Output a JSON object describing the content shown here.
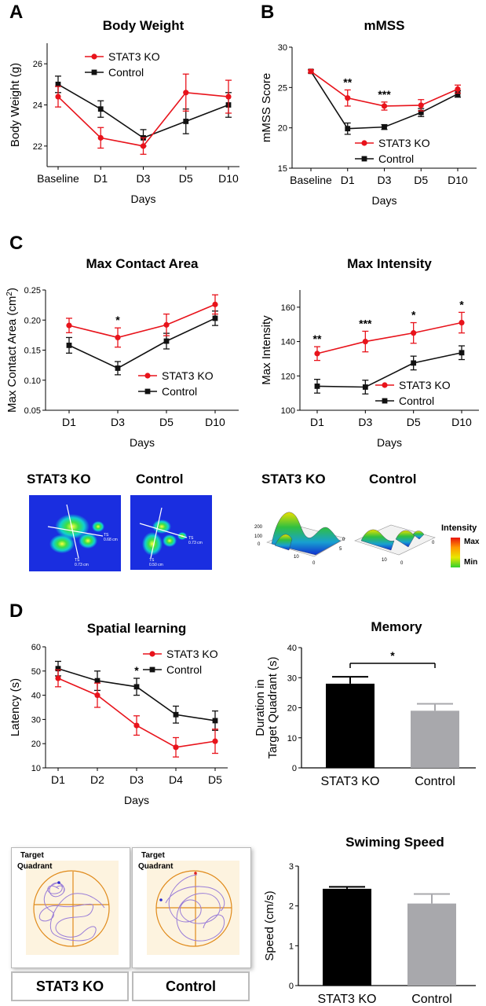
{
  "colors": {
    "ko": "#e8131b",
    "control": "#111111",
    "control_bar": "#a8a8ac",
    "axis": "#000000"
  },
  "panels": {
    "A": {
      "letter": "A",
      "chart_data": {
        "type": "line",
        "title": "Body Weight",
        "xlabel": "Days",
        "ylabel": "Body Weight (g)",
        "categories": [
          "Baseline",
          "D1",
          "D3",
          "D5",
          "D10"
        ],
        "ylim": [
          21,
          27
        ],
        "yticks": [
          22,
          24,
          26
        ],
        "legend_placement": "top-left",
        "series": [
          {
            "name": "STAT3 KO",
            "color": "#e8131b",
            "marker": "circle",
            "values": [
              24.4,
              22.4,
              22.0,
              24.6,
              24.4
            ],
            "errors": [
              0.5,
              0.5,
              0.4,
              0.9,
              0.8
            ]
          },
          {
            "name": "Control",
            "color": "#111111",
            "marker": "square",
            "values": [
              25.0,
              23.8,
              22.4,
              23.2,
              24.0
            ],
            "errors": [
              0.4,
              0.4,
              0.4,
              0.6,
              0.6
            ]
          }
        ],
        "annotations": []
      }
    },
    "B": {
      "letter": "B",
      "chart_data": {
        "type": "line",
        "title": "mMSS",
        "xlabel": "Days",
        "ylabel": "mMSS Score",
        "categories": [
          "Baseline",
          "D1",
          "D3",
          "D5",
          "D10"
        ],
        "ylim": [
          15,
          30
        ],
        "yticks": [
          15,
          20,
          25,
          30
        ],
        "legend_placement": "bottom-right",
        "series": [
          {
            "name": "STAT3 KO",
            "color": "#e8131b",
            "marker": "circle",
            "values": [
              27.0,
              23.7,
              22.7,
              22.8,
              24.8
            ],
            "errors": [
              0.2,
              1.0,
              0.5,
              0.7,
              0.5
            ]
          },
          {
            "name": "Control",
            "color": "#111111",
            "marker": "square",
            "values": [
              27.0,
              19.9,
              20.1,
              21.9,
              24.2
            ],
            "errors": [
              0.2,
              0.7,
              0.3,
              0.5,
              0.4
            ]
          }
        ],
        "annotations": [
          {
            "index": 1,
            "text": "**"
          },
          {
            "index": 2,
            "text": "***"
          }
        ]
      }
    },
    "C": {
      "letter": "C",
      "area": {
        "chart_data": {
          "type": "line",
          "title": "Max Contact Area",
          "xlabel": "Days",
          "ylabel": "Max Contact Area (cm",
          "ylabel_sup": "2",
          "ylabel_end": ")",
          "categories": [
            "D1",
            "D3",
            "D5",
            "D10"
          ],
          "ylim": [
            0.05,
            0.25
          ],
          "yticks": [
            "0.05",
            "0.10",
            "0.15",
            "0.20",
            "0.25"
          ],
          "legend_placement": "bottom-right",
          "series": [
            {
              "name": "STAT3 KO",
              "color": "#e8131b",
              "marker": "circle",
              "values": [
                0.191,
                0.171,
                0.192,
                0.226
              ],
              "errors": [
                0.012,
                0.016,
                0.018,
                0.016
              ]
            },
            {
              "name": "Control",
              "color": "#111111",
              "marker": "square",
              "values": [
                0.158,
                0.12,
                0.165,
                0.203
              ],
              "errors": [
                0.013,
                0.011,
                0.013,
                0.012
              ]
            }
          ],
          "annotations": [
            {
              "index": 1,
              "text": "*"
            }
          ]
        }
      },
      "intensity": {
        "chart_data": {
          "type": "line",
          "title": "Max Intensity",
          "xlabel": "Days",
          "ylabel": "Max Intensity",
          "categories": [
            "D1",
            "D3",
            "D5",
            "D10"
          ],
          "ylim": [
            100,
            170
          ],
          "yticks": [
            100,
            120,
            140,
            160
          ],
          "legend_placement": "bottom-right",
          "series": [
            {
              "name": "STAT3 KO",
              "color": "#e8131b",
              "marker": "circle",
              "values": [
                133,
                140,
                145,
                151
              ],
              "errors": [
                4,
                6,
                6,
                6
              ]
            },
            {
              "name": "Control",
              "color": "#111111",
              "marker": "square",
              "values": [
                114,
                113.5,
                127.5,
                133.5
              ],
              "errors": [
                4,
                4,
                4,
                4
              ]
            }
          ],
          "annotations": [
            {
              "index": 0,
              "text": "**"
            },
            {
              "index": 1,
              "text": "***"
            },
            {
              "index": 2,
              "text": "*"
            },
            {
              "index": 3,
              "text": "*"
            }
          ]
        }
      },
      "heatmaps": {
        "ko_label": "STAT3 KO",
        "control_label": "Control",
        "ko_readouts": [
          "TS",
          "0.68 cm",
          "TS",
          "0.73 cm"
        ],
        "control_readouts": [
          "TS",
          "0.73 cm",
          "TS",
          "0.50 cm"
        ]
      },
      "surfaces": {
        "ko_label": "STAT3 KO",
        "control_label": "Control",
        "ko_axis_ticks": [
          "200",
          "100",
          "0",
          "10",
          "0",
          "5",
          "0"
        ],
        "control_axis_ticks": [
          "10",
          "0",
          "0"
        ],
        "legend_title": "Intensity",
        "legend_max": "Max",
        "legend_min": "Min"
      }
    },
    "D": {
      "letter": "D",
      "learning": {
        "chart_data": {
          "type": "line",
          "title": "Spatial learning",
          "xlabel": "Days",
          "ylabel": "Latency (s)",
          "categories": [
            "D1",
            "D2",
            "D3",
            "D4",
            "D5"
          ],
          "ylim": [
            10,
            60
          ],
          "yticks": [
            10,
            20,
            30,
            40,
            50,
            60
          ],
          "legend_placement": "top-right",
          "series": [
            {
              "name": "STAT3 KO",
              "color": "#e8131b",
              "marker": "circle",
              "values": [
                47,
                40,
                27.5,
                18.5,
                21
              ],
              "errors": [
                3.5,
                5,
                4,
                4,
                5
              ]
            },
            {
              "name": "Control",
              "color": "#111111",
              "marker": "square",
              "values": [
                51,
                46,
                43.5,
                32,
                29.5
              ],
              "errors": [
                3,
                4,
                3.5,
                3.5,
                4
              ]
            }
          ],
          "annotations": [
            {
              "index": 2,
              "text": "*"
            }
          ]
        }
      },
      "memory": {
        "chart_data": {
          "type": "bar",
          "title": "Memory",
          "ylabel_line1": "Duration in",
          "ylabel_line2": "Target Quadrant (s)",
          "categories": [
            "STAT3 KO",
            "Control"
          ],
          "values": [
            28,
            19
          ],
          "errors": [
            2.3,
            2.3
          ],
          "bar_colors": [
            "#000000",
            "#a8a8ac"
          ],
          "ylim": [
            0,
            40
          ],
          "yticks": [
            0,
            10,
            20,
            30,
            40
          ],
          "significance": "*"
        }
      },
      "swimming": {
        "chart_data": {
          "type": "bar",
          "title": "Swiming Speed",
          "ylabel": "Speed (cm/s)",
          "categories": [
            "STAT3 KO",
            "Control"
          ],
          "values": [
            2.43,
            2.06
          ],
          "errors": [
            0.05,
            0.24
          ],
          "bar_colors": [
            "#000000",
            "#a8a8ac"
          ],
          "ylim": [
            0,
            3
          ],
          "yticks": [
            0,
            1,
            2,
            3
          ]
        }
      },
      "tracks": {
        "ko_label": "STAT3 KO",
        "control_label": "Control",
        "target_label_line1": "Target",
        "target_label_line2": "Quadrant"
      }
    }
  }
}
